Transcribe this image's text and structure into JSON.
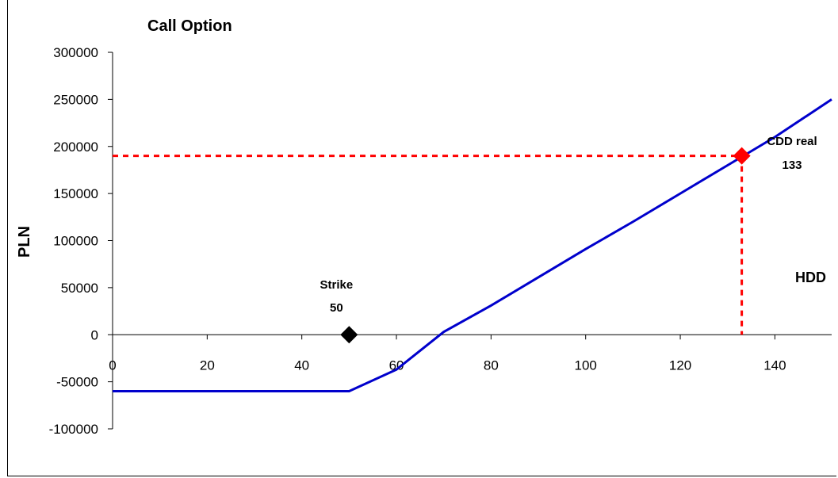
{
  "chart_data": {
    "type": "line",
    "title": "Call Option",
    "ylabel": "PLN",
    "xlabel": "HDD",
    "xlim": [
      0,
      152
    ],
    "ylim": [
      -100000,
      300000
    ],
    "x_ticks": [
      0,
      20,
      40,
      60,
      80,
      100,
      120,
      140
    ],
    "y_ticks": [
      300000,
      250000,
      200000,
      150000,
      100000,
      50000,
      0,
      -50000,
      -100000
    ],
    "series": [
      {
        "color": "#0000cc",
        "x": [
          0,
          50,
          60,
          70,
          80,
          90,
          100,
          110,
          120,
          130,
          140,
          152
        ],
        "y": [
          -60000,
          -60000,
          -37000,
          3000,
          31000,
          61000,
          91000,
          120000,
          150000,
          180000,
          210000,
          250000
        ]
      }
    ],
    "markers": [
      {
        "name": "strike",
        "x": 50,
        "y": 0,
        "color": "#000000",
        "label_line1": "Strike",
        "label_line2": "50"
      },
      {
        "name": "cdd-real",
        "x": 133,
        "y": 190000,
        "color": "#ff0000",
        "label_line1": "CDD real",
        "label_line2": "133"
      }
    ],
    "reference_lines": {
      "color": "#ff0000",
      "x": 133,
      "y": 190000
    },
    "grid": false
  }
}
